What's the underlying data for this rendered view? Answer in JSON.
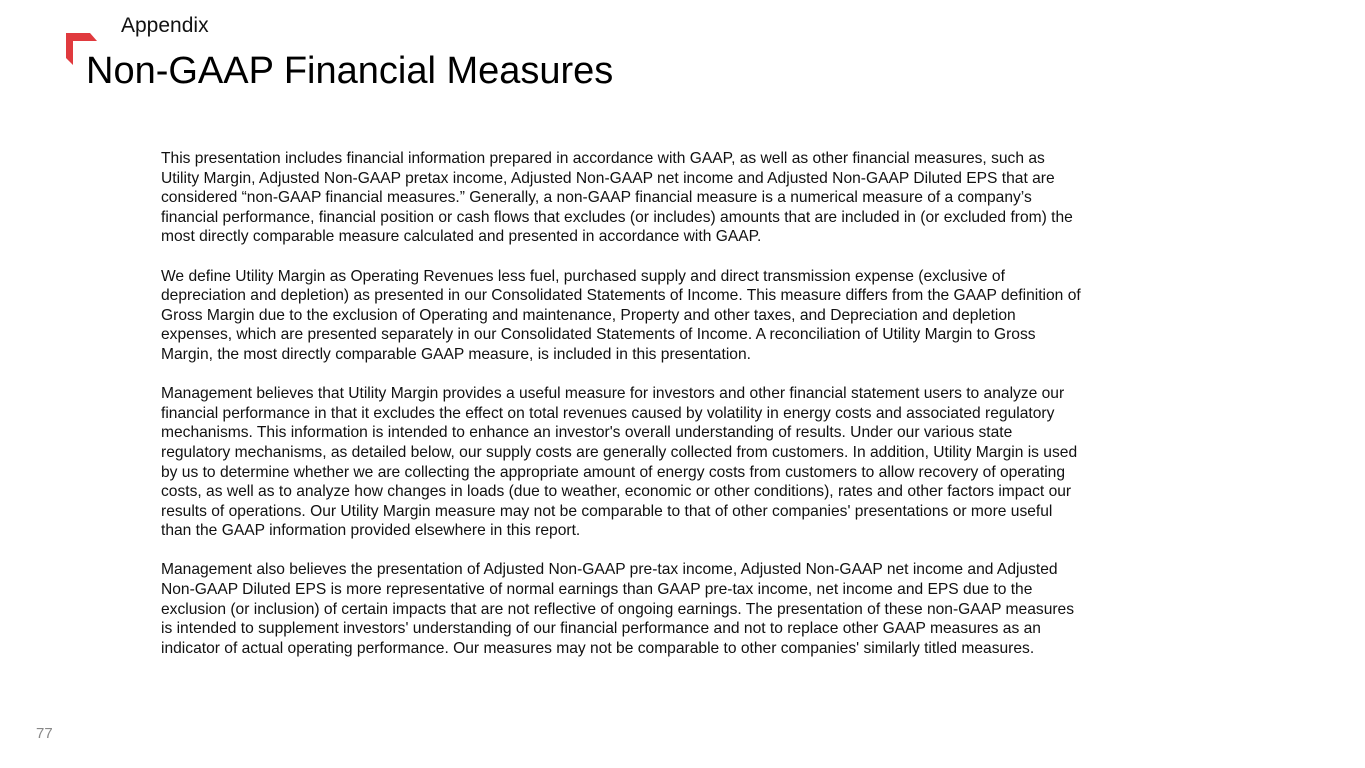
{
  "header": {
    "section": "Appendix",
    "title": "Non-GAAP Financial Measures",
    "accent_color": "#e03a3e"
  },
  "paragraphs": [
    [
      "This presentation includes financial information prepared in accordance with GAAP, as well as other financial measures, such as",
      "Utility Margin, Adjusted Non-GAAP pretax income, Adjusted Non-GAAP net income and Adjusted Non-GAAP Diluted EPS that are",
      "considered “non-GAAP financial measures.” Generally, a non-GAAP financial measure is a numerical measure of a company’s",
      "financial performance, financial position or cash flows that excludes (or includes) amounts that are included in (or excluded from) the",
      "most directly comparable measure calculated and presented in accordance with GAAP."
    ],
    [
      "We define Utility Margin as Operating Revenues less fuel, purchased supply and direct transmission expense (exclusive of",
      "depreciation and depletion) as presented in our Consolidated Statements of Income. This measure differs from the GAAP definition of",
      "Gross Margin due to the exclusion of Operating and maintenance, Property and other taxes, and Depreciation and depletion",
      "expenses, which are presented separately in our Consolidated Statements of Income. A reconciliation of Utility Margin to Gross",
      "Margin, the most directly comparable GAAP measure, is included in this presentation."
    ],
    [
      "Management believes that Utility Margin provides a useful measure for investors and other financial statement users to analyze our",
      "financial performance in that it excludes the effect on total revenues caused by volatility in energy costs and associated regulatory",
      "mechanisms. This information is intended to enhance an investor's overall understanding of results. Under our various state",
      "regulatory mechanisms, as detailed below, our supply costs are generally collected from customers. In addition, Utility Margin is used",
      "by us to determine whether we are collecting the appropriate amount of energy costs from customers to allow recovery of operating",
      "costs, as well as to analyze how changes in loads (due to weather, economic or other conditions), rates and other factors impact our",
      "results of operations. Our Utility Margin measure may not be comparable to that of other companies' presentations or more useful",
      "than the GAAP information provided elsewhere in this report."
    ],
    [
      "Management also believes the presentation of Adjusted Non-GAAP pre-tax income, Adjusted Non-GAAP net income and Adjusted",
      "Non-GAAP Diluted EPS is more representative of normal earnings than GAAP pre-tax income, net income and EPS due to the",
      "exclusion (or inclusion) of certain impacts that are not reflective of ongoing earnings. The presentation of these non-GAAP measures",
      "is intended to supplement investors' understanding of our financial performance and not to replace other GAAP measures as an",
      "indicator of actual operating performance. Our measures may not be comparable to other companies' similarly titled measures."
    ]
  ],
  "footer": {
    "page_number": "77"
  }
}
